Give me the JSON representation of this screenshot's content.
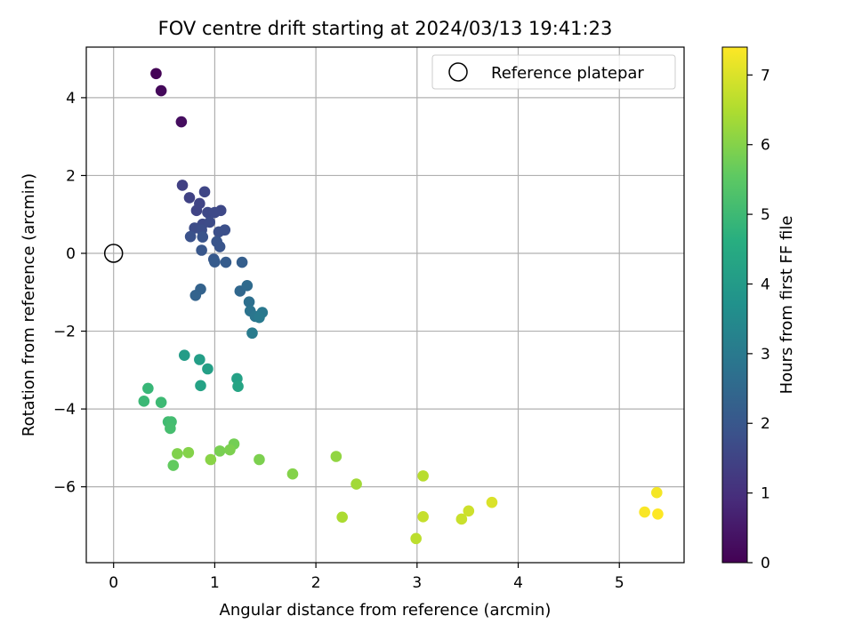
{
  "chart_data": {
    "type": "scatter",
    "title": "FOV centre drift starting at 2024/03/13 19:41:23",
    "xlabel": "Angular distance from reference (arcmin)",
    "ylabel": "Rotation from reference (arcmin)",
    "xlim": [
      -0.27,
      5.64
    ],
    "ylim": [
      -7.95,
      5.3
    ],
    "xticks": [
      0,
      1,
      2,
      3,
      4,
      5
    ],
    "yticks": [
      -6,
      -4,
      -2,
      0,
      2,
      4
    ],
    "grid": true,
    "legend": {
      "position": "top-right",
      "entries": [
        "Reference platepar"
      ]
    },
    "colorbar": {
      "label": "Hours from first FF file",
      "colormap": "viridis",
      "range": [
        0,
        7.4
      ],
      "ticks": [
        0,
        1,
        2,
        3,
        4,
        5,
        6,
        7
      ]
    },
    "reference_point": {
      "x": 0,
      "y": 0
    },
    "series": [
      {
        "x": [
          0.42,
          0.47,
          0.67,
          0.68,
          0.75,
          0.85,
          0.82,
          0.9,
          0.93,
          1.06,
          1.0,
          0.88,
          0.95,
          0.8,
          0.87,
          1.04,
          1.1,
          0.76,
          0.88,
          1.02,
          1.05,
          0.87,
          0.99,
          1.0,
          1.11,
          1.27,
          0.86,
          0.81,
          1.25,
          1.32,
          1.34,
          1.35,
          1.4,
          1.47,
          1.44,
          1.37,
          0.7,
          0.85,
          0.93,
          1.22,
          0.86,
          1.23,
          0.34,
          0.3,
          0.47,
          0.54,
          0.57,
          0.56,
          1.19,
          1.05,
          1.15,
          0.63,
          0.74,
          0.96,
          0.59,
          1.44,
          1.77,
          2.2,
          2.4,
          2.26,
          3.06,
          2.99,
          3.06,
          3.44,
          3.51,
          3.74,
          5.37,
          5.25,
          5.38
        ],
        "y": [
          4.62,
          4.18,
          3.38,
          1.75,
          1.43,
          1.28,
          1.1,
          1.58,
          1.05,
          1.1,
          1.05,
          0.75,
          0.8,
          0.65,
          0.6,
          0.55,
          0.6,
          0.43,
          0.42,
          0.3,
          0.17,
          0.08,
          -0.15,
          -0.22,
          -0.23,
          -0.23,
          -0.92,
          -1.08,
          -0.97,
          -0.83,
          -1.25,
          -1.48,
          -1.62,
          -1.52,
          -1.65,
          -2.05,
          -2.62,
          -2.73,
          -2.97,
          -3.22,
          -3.4,
          -3.42,
          -3.47,
          -3.8,
          -3.83,
          -4.33,
          -4.33,
          -4.5,
          -4.9,
          -5.08,
          -5.05,
          -5.15,
          -5.12,
          -5.3,
          -5.45,
          -5.3,
          -5.67,
          -5.22,
          -5.93,
          -6.78,
          -5.72,
          -7.33,
          -6.77,
          -6.83,
          -6.62,
          -6.4,
          -6.15,
          -6.65,
          -6.7
        ],
        "hours": [
          0.05,
          0.15,
          0.25,
          1.4,
          1.45,
          1.5,
          1.5,
          1.55,
          1.6,
          1.6,
          1.65,
          1.65,
          1.7,
          1.7,
          1.75,
          1.8,
          1.8,
          1.85,
          1.9,
          1.95,
          1.95,
          2.0,
          2.05,
          2.1,
          2.15,
          2.2,
          2.3,
          2.35,
          2.45,
          2.55,
          2.7,
          2.8,
          2.9,
          2.95,
          3.0,
          3.05,
          4.05,
          4.1,
          4.15,
          4.2,
          4.25,
          4.3,
          4.9,
          4.95,
          5.0,
          5.05,
          5.1,
          5.15,
          5.8,
          5.85,
          5.9,
          5.95,
          6.0,
          6.05,
          5.6,
          5.9,
          6.0,
          6.15,
          6.35,
          6.45,
          6.6,
          6.65,
          6.75,
          6.8,
          6.85,
          7.0,
          7.3,
          7.35,
          7.4
        ]
      }
    ]
  }
}
